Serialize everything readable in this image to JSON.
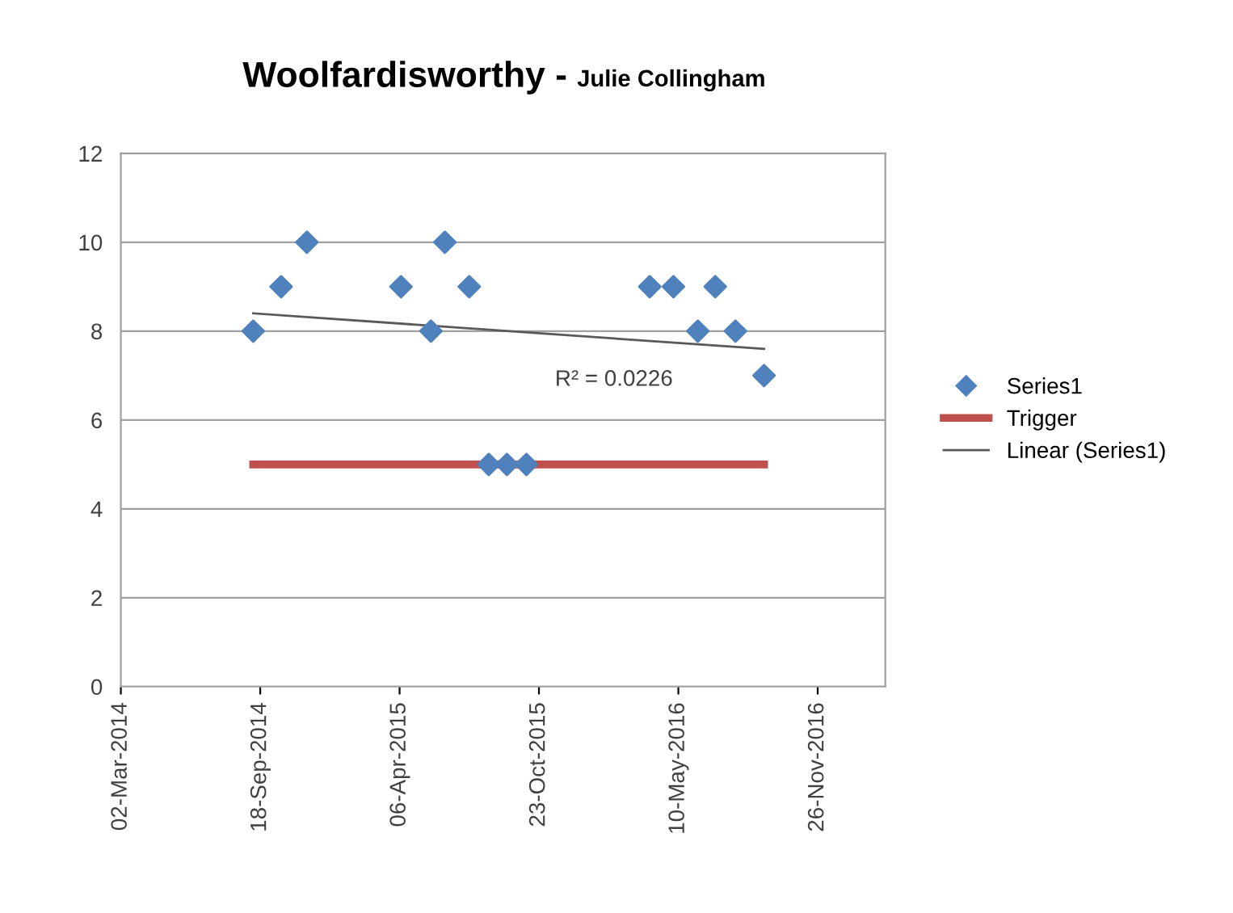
{
  "chart_data": {
    "type": "scatter",
    "title": "Woolfardisworthy -",
    "subtitle": "Julie Collingham",
    "series": [
      {
        "name": "Series1",
        "color": "#4f81bd",
        "marker": "diamond",
        "x": [
          "2014-09-08",
          "2014-10-18",
          "2014-11-24",
          "2015-04-08",
          "2015-05-21",
          "2015-06-10",
          "2015-07-15",
          "2015-08-12",
          "2015-09-07",
          "2015-10-05",
          "2016-03-30",
          "2016-05-03",
          "2016-06-07",
          "2016-07-02",
          "2016-07-31",
          "2016-09-10"
        ],
        "values": [
          8,
          9,
          10,
          9,
          8,
          10,
          9,
          5,
          5,
          5,
          9,
          9,
          8,
          9,
          8,
          7
        ]
      },
      {
        "name": "Trigger",
        "type": "line",
        "color": "#c0504d",
        "x": [
          "2014-09-08",
          "2016-09-10"
        ],
        "values": [
          5,
          5
        ]
      },
      {
        "name": "Linear (Series1)",
        "type": "line",
        "color": "#595959",
        "x": [
          "2014-09-08",
          "2016-09-10"
        ],
        "values": [
          8.4,
          7.6
        ]
      }
    ],
    "annotations": [
      "R² = 0.0226"
    ],
    "xlim": [
      "2014-03-02",
      "2017-03-03"
    ],
    "xticks": [
      {
        "value": "2014-03-02",
        "label": "02-Mar-2014"
      },
      {
        "value": "2014-09-18",
        "label": "18-Sep-2014"
      },
      {
        "value": "2015-04-06",
        "label": "06-Apr-2015"
      },
      {
        "value": "2015-10-23",
        "label": "23-Oct-2015"
      },
      {
        "value": "2016-05-10",
        "label": "10-May-2016"
      },
      {
        "value": "2016-11-26",
        "label": "26-Nov-2016"
      }
    ],
    "ylim": [
      0,
      12
    ],
    "yticks": [
      0,
      2,
      4,
      6,
      8,
      10,
      12
    ],
    "grid": "y",
    "legend": "right"
  }
}
